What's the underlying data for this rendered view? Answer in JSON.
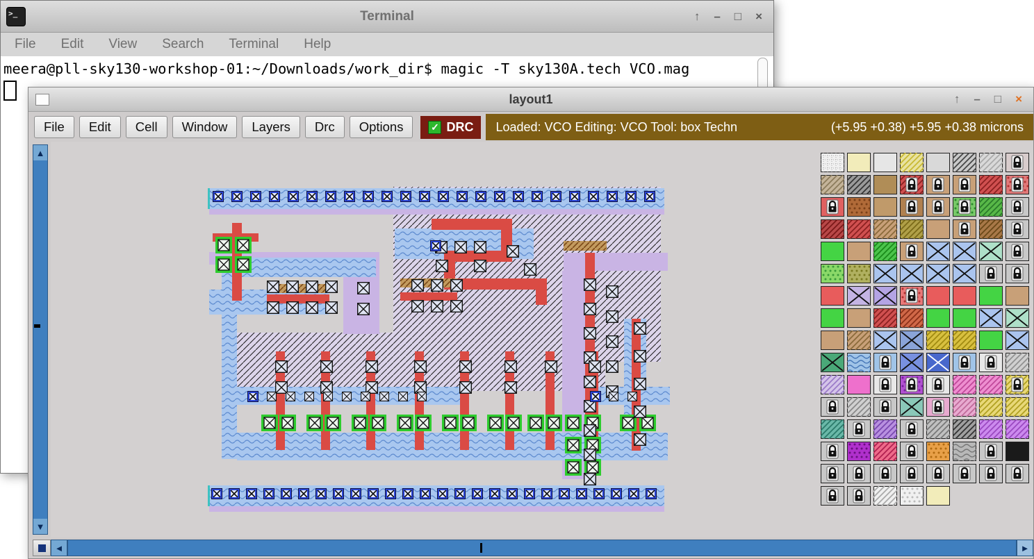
{
  "terminal": {
    "title": "Terminal",
    "menu": [
      "File",
      "Edit",
      "View",
      "Search",
      "Terminal",
      "Help"
    ],
    "prompt_line": "meera@pll-sky130-workshop-01:~/Downloads/work_dir$ magic -T sky130A.tech VCO.mag"
  },
  "magic": {
    "title": "layout1",
    "toolbar": [
      "File",
      "Edit",
      "Cell",
      "Window",
      "Layers",
      "Drc",
      "Options"
    ],
    "drc_label": "DRC",
    "status_left": "Loaded: VCO Editing: VCO Tool: box  Techn",
    "status_right": "(+5.95 +0.38) +5.95 +0.38 microns"
  },
  "icons": {
    "terminal_glyph": ">_",
    "shade": "↑",
    "minimize": "–",
    "maximize": "□",
    "close": "×",
    "check": "✓",
    "up": "▲",
    "down": "▼",
    "left": "◄",
    "right": "►"
  },
  "colors": {
    "scrollbar_blue": "#3f7fbf",
    "drc_bg": "#7a1d12",
    "status_bg": "#7e5e14",
    "canvas_gray": "#d3d0d0",
    "metal_blue": "#a9c7ef",
    "poly_red": "#da4b44",
    "nwell_lavender": "#dcd4ea",
    "contact_green": "#2ecc2e",
    "purple": "#c9b4e4"
  },
  "palette": {
    "cells": [
      [
        "#f0f0f0|grid|#999|",
        "#f2ecba|||",
        "#e6e6e6|||",
        "#e8e2a0|diag|#c8b830|",
        "#d9d9d9|||",
        "#c8c8c8|diag|#444|",
        "#d9d9d9|diag|#aaa|",
        "#d8cccc|||L"
      ],
      [
        "#c4b49a|diag|#8a7a5a|",
        "#9a9a9a|diag|#333|",
        "#b08d57|||",
        "#d05050|diag|#8a2020|L",
        "#c8a078|||L",
        "#c8a078|||L",
        "#d05050|diag|#8a2020|",
        "#e07878|dots|#b03030|L"
      ],
      [
        "#e06060|||L",
        "#b06a38|dots|#7a4018|",
        "#c09a6a|||",
        "#b08050|||L",
        "#c8a078|||L",
        "#78c868|dots|#2a8a2a|L",
        "#58b848|diag|#2a7a2a|",
        "#c8c8c8|||L"
      ],
      [
        "#b84848|diag|#7a1818|",
        "#d05050|diag|#8a2020|",
        "#c8a078|diag|#8a6a3a|",
        "#b0a048|diag|#7a6a18|",
        "#c8a078|||",
        "#c8a078|||L",
        "#a87848|diag|#6a4818|",
        "#c8c8c8|||L"
      ],
      [
        "#44d444|||",
        "#c8a078|||",
        "#4cc44c|diag|#1a8a1a|",
        "#c8a078|||L",
        "#aac4ee|x|#111|",
        "#aac4ee|x|#111|",
        "#aee0c8|x|#111|",
        "#c8c8c8|||L"
      ],
      [
        "#8ad868|dots|#3a9a3a|",
        "#b0b060|dots|#7a7a20|",
        "#aac4ee|x|#111|",
        "#aac4ee|x|#111|",
        "#aac4ee|x|#111|",
        "#aac4ee|x|#111|",
        "#c8c8c8|||L",
        "#c8c8c8|||L"
      ],
      [
        "#e85c5c|||",
        "#c4b4e4|x|#111|",
        "#b4a4e4|x|#111|",
        "#e87878|dots|#b03030|L",
        "#e85c5c|||",
        "#e85c5c|||",
        "#44d444|||",
        "#c8a078|||"
      ],
      [
        "#44d444|||",
        "#c8a078|||",
        "#d05050|diag|#8a2020|",
        "#d06848|diag|#8a3018|",
        "#44d444|||",
        "#44d444|||",
        "#aac4ee|x|#111|",
        "#aee0c8|x|#111|"
      ],
      [
        "#c8a078|||",
        "#c8a078|diag|#8a6a3a|",
        "#aac4ee|x|#111|",
        "#8aa4d8|x|#111|",
        "#d8c040|diag|#a08a10|",
        "#d8c040|diag|#a08a10|",
        "#44d444|||",
        "#aac4ee|x|#111|"
      ],
      [
        "#4aa878|x|#111|",
        "#a0c4e8|waves|#4878b8|",
        "#a0c4e8|||L",
        "#7890e0|x|#111|",
        "#4868cc|x|#fff|",
        "#a0c4e8|||L",
        "#e8e8e8|||L",
        "#d0d0d0|diag|#909090|"
      ],
      [
        "#d4c4e8|diag|#9a7ac8|",
        "#ee70cc|||",
        "#e8e8e8|||L",
        "#b050d0|dots|#7a20a0|L",
        "#e8e8e8|||L",
        "#ee8ed0|diag|#c0489a|",
        "#ee8ed0|diag|#c0489a|",
        "#e8d878|diag|#b0a020|L"
      ],
      [
        "#c8c8c8|||L",
        "#d0d0d0|diag|#888|",
        "#c8c8c8|||L",
        "#8ac8b8|x|#111|",
        "#e8aad0|||L",
        "#e8aad0|diag|#c06a9a|",
        "#e8d878|diag|#b0a020|",
        "#e8d878|diag|#b0a020|"
      ],
      [
        "#6ab8a8|diag|#2a7a6a|",
        "#c8c8c8|||L",
        "#b890e0|diag|#7a48b0|",
        "#c8c8c8|||L",
        "#c0c0c0|diag|#777|",
        "#a0a0a0|diag|#333|",
        "#cc8aee|diag|#9a48c0|",
        "#cc8aee|diag|#9a48c0|"
      ],
      [
        "#c8c8c8|||L",
        "#b030cc|dots|#6a1080|",
        "#ee6a8a|diag|#b02050|",
        "#c8c8c8|||L",
        "#e8a048|dots|#b06a10|",
        "#b8b8b8|waves|#777|",
        "#c8c8c8|||L",
        "#1a1a1a|||"
      ],
      [
        "#c8c8c8|||L",
        "#c8c8c8|||L",
        "#c8c8c8|||L",
        "#c8c8c8|||L",
        "#c8c8c8|||L",
        "#c8c8c8|||L",
        "#c8c8c8|||L",
        "#c8c8c8|||L"
      ],
      [
        "#c8c8c8|||L",
        "#c8c8c8|||L",
        "#f0f0f0|diag|#aaa|",
        "#f0f0f0|dots|#bbb|",
        "#f2ecba|||"
      ]
    ]
  }
}
